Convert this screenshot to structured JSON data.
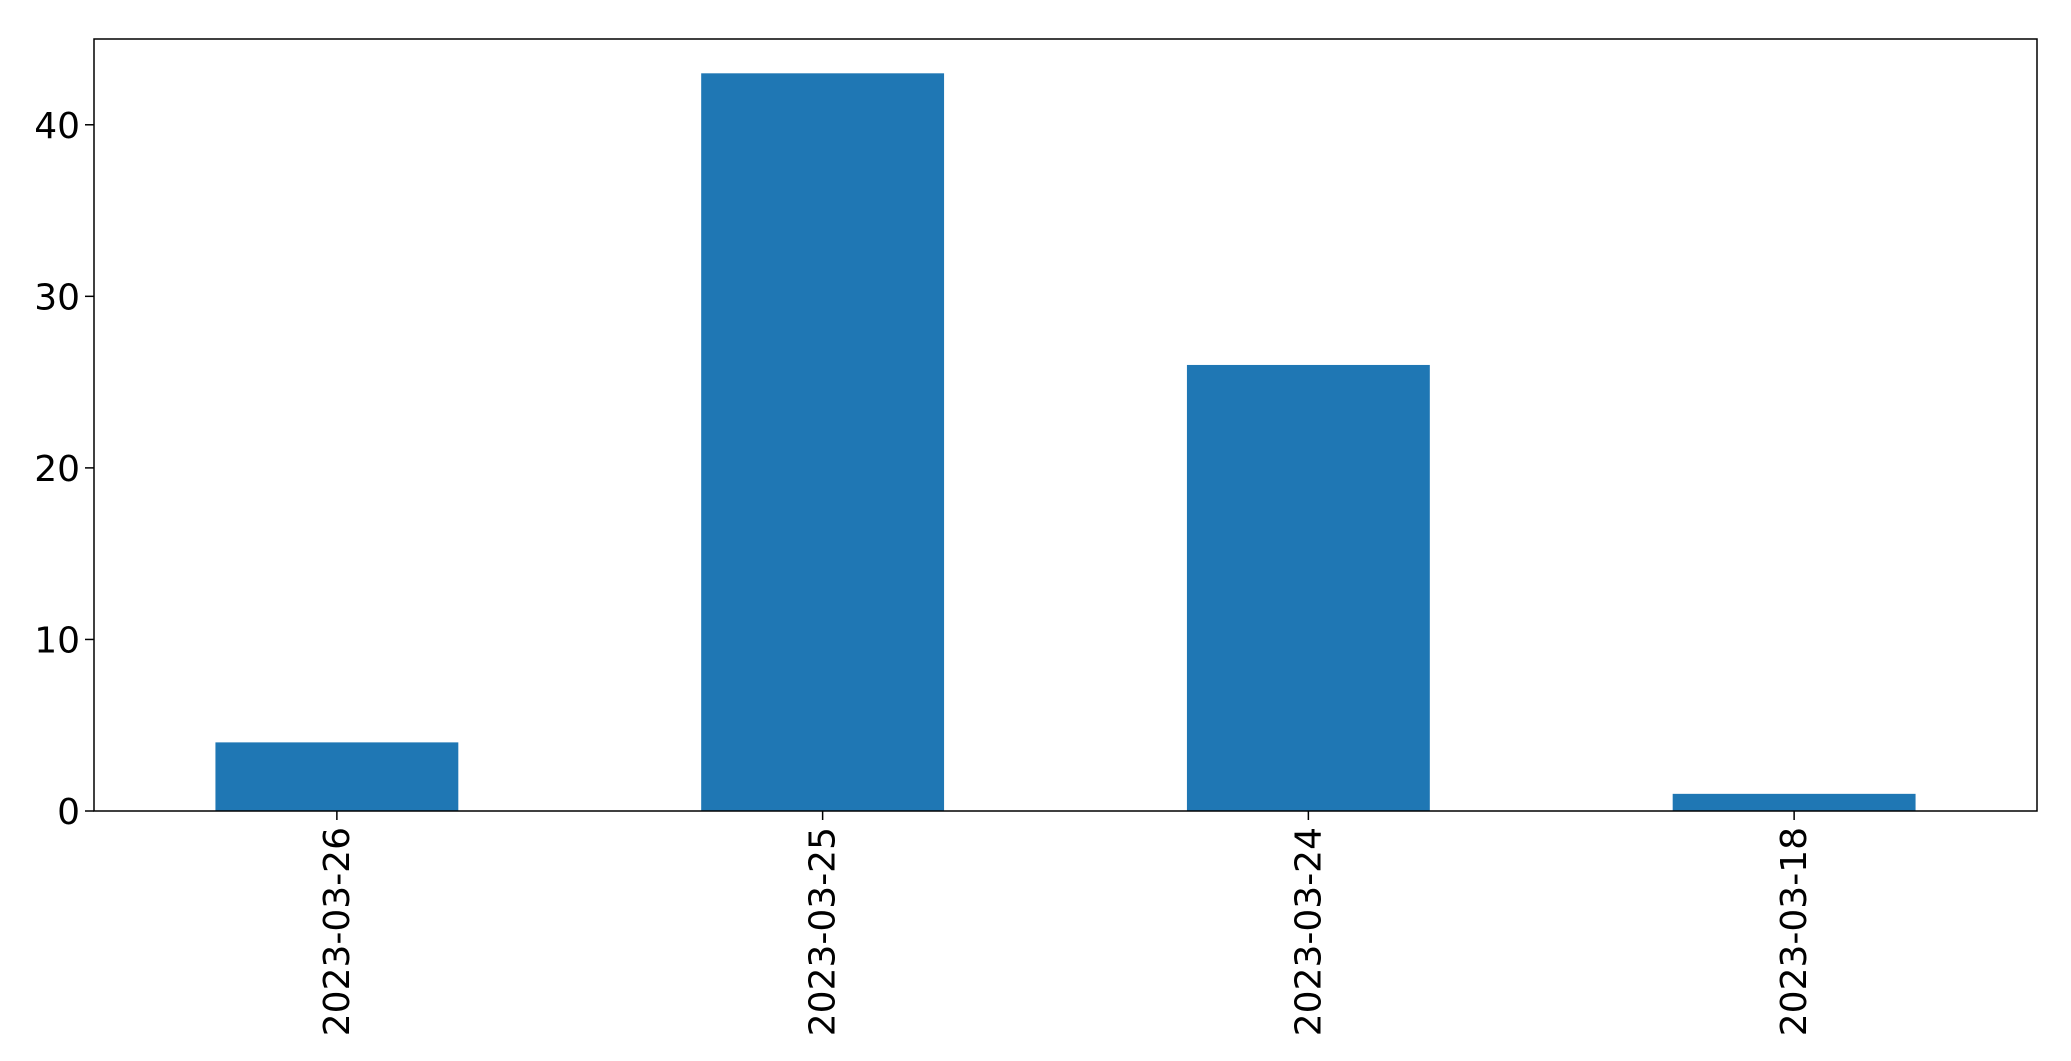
{
  "chart_data": {
    "type": "bar",
    "categories": [
      "2023-03-26",
      "2023-03-25",
      "2023-03-24",
      "2023-03-18"
    ],
    "values": [
      4,
      43,
      26,
      1
    ],
    "title": "",
    "xlabel": "",
    "ylabel": "",
    "ylim": [
      0,
      45
    ],
    "yticks": [
      0,
      10,
      20,
      30,
      40
    ],
    "grid": false,
    "legend": "none",
    "bar_color": "#1f77b4",
    "x_tick_rotation": "vertical"
  }
}
